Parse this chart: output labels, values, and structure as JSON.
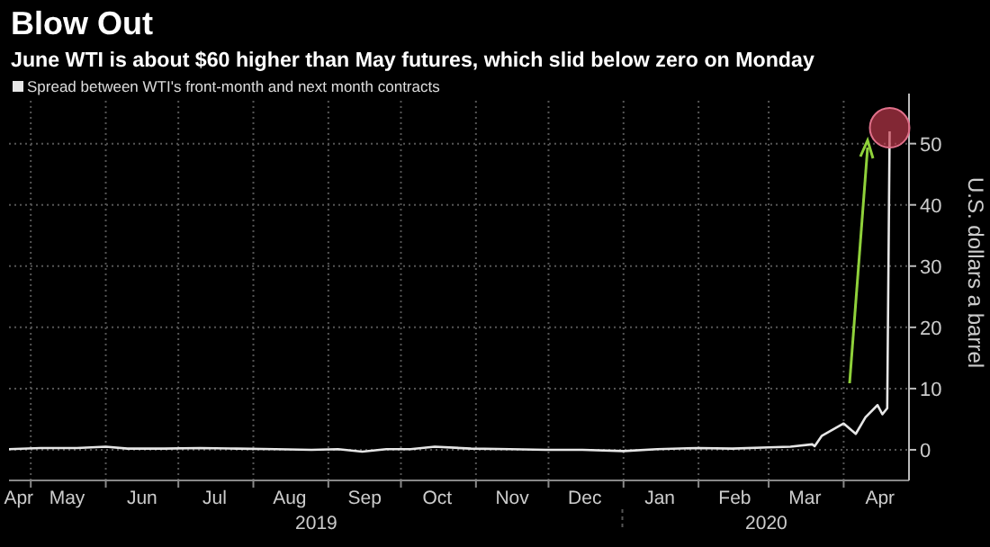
{
  "chart_data": {
    "type": "line",
    "title": "Blow Out",
    "subtitle": "June WTI is about $60 higher than May futures, which slid below zero on Monday",
    "ylabel": "U.S. dollars a barrel",
    "legend": "top left",
    "grid": true,
    "xlim": [
      "2019-04-22",
      "2020-04-28"
    ],
    "xticks": [
      {
        "value": "2019-04-26",
        "label": "Apr"
      },
      {
        "value": "2019-05-01",
        "label": null
      },
      {
        "value": "2019-05-16",
        "label": "May"
      },
      {
        "value": "2019-06-01",
        "label": null
      },
      {
        "value": "2019-06-16",
        "label": "Jun"
      },
      {
        "value": "2019-07-01",
        "label": null
      },
      {
        "value": "2019-07-16",
        "label": "Jul"
      },
      {
        "value": "2019-08-01",
        "label": null
      },
      {
        "value": "2019-08-16",
        "label": "Aug"
      },
      {
        "value": "2019-09-01",
        "label": null
      },
      {
        "value": "2019-09-16",
        "label": "Sep"
      },
      {
        "value": "2019-10-01",
        "label": null
      },
      {
        "value": "2019-10-16",
        "label": "Oct"
      },
      {
        "value": "2019-11-01",
        "label": null
      },
      {
        "value": "2019-11-16",
        "label": "Nov"
      },
      {
        "value": "2019-12-01",
        "label": null
      },
      {
        "value": "2019-12-16",
        "label": "Dec"
      },
      {
        "value": "2020-01-01",
        "label": null
      },
      {
        "value": "2020-01-16",
        "label": "Jan"
      },
      {
        "value": "2020-02-01",
        "label": null
      },
      {
        "value": "2020-02-16",
        "label": "Feb"
      },
      {
        "value": "2020-03-01",
        "label": null
      },
      {
        "value": "2020-03-16",
        "label": "Mar"
      },
      {
        "value": "2020-04-01",
        "label": null
      },
      {
        "value": "2020-04-16",
        "label": "Apr"
      }
    ],
    "annotations": [
      "2019",
      "2020"
    ],
    "ylim": [
      -5,
      57
    ],
    "yticks": [
      0,
      10,
      20,
      30,
      40,
      50
    ],
    "series": [
      {
        "name": "Spread between WTI's front-month and next month contracts",
        "color": "#e6e6e6",
        "x": [
          "2019-04-22",
          "2019-05-05",
          "2019-05-20",
          "2019-06-01",
          "2019-06-10",
          "2019-06-25",
          "2019-07-10",
          "2019-07-25",
          "2019-08-10",
          "2019-08-25",
          "2019-09-05",
          "2019-09-15",
          "2019-09-25",
          "2019-10-05",
          "2019-10-15",
          "2019-10-30",
          "2019-11-15",
          "2019-11-30",
          "2019-12-15",
          "2020-01-01",
          "2020-01-15",
          "2020-02-01",
          "2020-02-15",
          "2020-03-01",
          "2020-03-10",
          "2020-03-19",
          "2020-03-20",
          "2020-03-23",
          "2020-04-01",
          "2020-04-06",
          "2020-04-10",
          "2020-04-15",
          "2020-04-17",
          "2020-04-19",
          "2020-04-20"
        ],
        "values": [
          0.1,
          0.3,
          0.3,
          0.5,
          0.2,
          0.2,
          0.3,
          0.2,
          0.1,
          0.0,
          0.1,
          -0.3,
          0.1,
          0.1,
          0.5,
          0.2,
          0.1,
          0.0,
          0.0,
          -0.2,
          0.1,
          0.3,
          0.2,
          0.4,
          0.5,
          0.9,
          0.6,
          2.3,
          4.3,
          2.6,
          5.3,
          7.3,
          5.8,
          6.8,
          52
        ]
      }
    ]
  }
}
